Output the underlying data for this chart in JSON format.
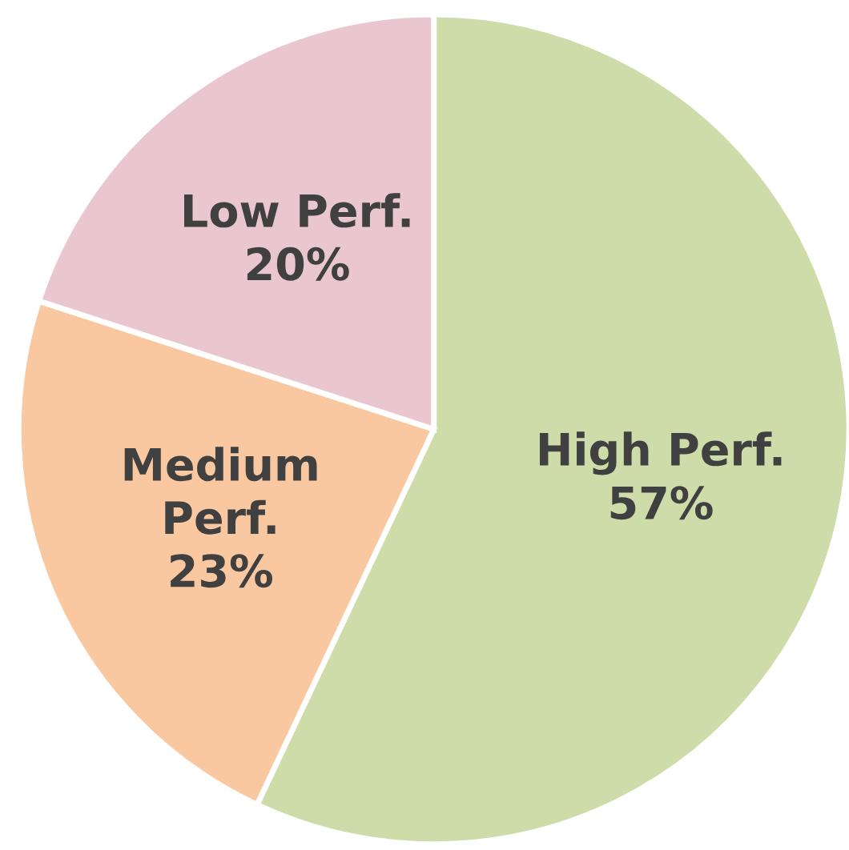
{
  "chart_data": {
    "type": "pie",
    "categories": [
      "High Perf.",
      "Medium\nPerf.",
      "Low Perf."
    ],
    "values": [
      57,
      23,
      20
    ],
    "colors": [
      "#cedcaa",
      "#f9c8a0",
      "#eac6d0"
    ],
    "value_labels": [
      "57%",
      "23%",
      "20%"
    ]
  }
}
